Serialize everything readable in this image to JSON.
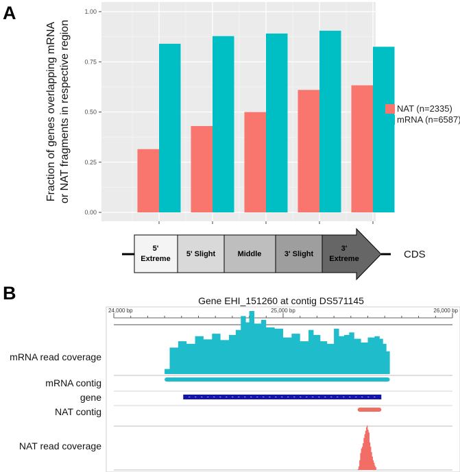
{
  "panel_a": {
    "panel_label": "A",
    "ylabel_line1": "Fraction of genes overlapping  mRNA",
    "ylabel_line2": "or NAT fragments in respective region",
    "yticks": [
      "0.00",
      "0.25",
      "0.50",
      "0.75",
      "1.00"
    ],
    "legend": {
      "nat_label": "NAT (n=2335)",
      "mrna_label": "mRNA (n=6587)"
    },
    "region_boxes": [
      {
        "line1": "5'",
        "line2": "Extreme"
      },
      {
        "line1": "5' Slight",
        "line2": ""
      },
      {
        "line1": "Middle",
        "line2": ""
      },
      {
        "line1": "3' Slight",
        "line2": ""
      },
      {
        "line1": "3'",
        "line2": "Extreme"
      }
    ],
    "cds_label": "CDS"
  },
  "chart_data": [
    {
      "type": "bar",
      "title": "",
      "xlabel": "",
      "ylabel": "Fraction of genes overlapping  mRNA or NAT fragments in respective region",
      "categories": [
        "5' Extreme",
        "5' Slight",
        "Middle",
        "3' Slight",
        "3' Extreme"
      ],
      "series": [
        {
          "name": "NAT (n=2335)",
          "color": "#f8766d",
          "values": [
            0.315,
            0.43,
            0.5,
            0.61,
            0.633
          ]
        },
        {
          "name": "mRNA (n=6587)",
          "color": "#00bfc4",
          "values": [
            0.84,
            0.878,
            0.891,
            0.905,
            0.825
          ]
        }
      ],
      "ylim": [
        0,
        1.0
      ],
      "grid": true,
      "legend_position": "right"
    },
    {
      "type": "area",
      "title": "Gene EHI_151260 at contig DS571145",
      "axis_ticks": [
        "24,000 bp",
        "25,000 bp",
        "26,000 bp"
      ],
      "xlim": [
        24000,
        26000
      ],
      "tracks": [
        {
          "name": "mRNA read coverage",
          "color": "#1fbccc",
          "x": [
            24300,
            24330,
            24380,
            24430,
            24480,
            24530,
            24580,
            24630,
            24680,
            24720,
            24750,
            24780,
            24800,
            24830,
            24870,
            24900,
            24950,
            25000,
            25050,
            25100,
            25150,
            25180,
            25220,
            25260,
            25300,
            25330,
            25360,
            25390,
            25420,
            25460,
            25500,
            25540,
            25570,
            25590,
            25610,
            25630
          ],
          "values": [
            0.08,
            0.42,
            0.52,
            0.48,
            0.6,
            0.55,
            0.64,
            0.54,
            0.62,
            0.7,
            0.92,
            0.82,
            1.0,
            0.8,
            0.86,
            0.74,
            0.72,
            0.58,
            0.64,
            0.52,
            0.7,
            0.62,
            0.52,
            0.48,
            0.72,
            0.6,
            0.62,
            0.66,
            0.56,
            0.5,
            0.58,
            0.6,
            0.56,
            0.48,
            0.36,
            0.04
          ]
        },
        {
          "name": "mRNA contig",
          "color": "#1fbccc",
          "start": 24300,
          "end": 25630
        },
        {
          "name": "gene",
          "color": "#1414a8",
          "start": 24410,
          "end": 25580
        },
        {
          "name": "NAT contig",
          "color": "#ef6e63",
          "start": 25440,
          "end": 25580
        },
        {
          "name": "NAT read coverage",
          "color": "#f26d66",
          "x": [
            25440,
            25445,
            25450,
            25455,
            25460,
            25465,
            25470,
            25475,
            25480,
            25485,
            25490,
            25495,
            25500,
            25505,
            25510,
            25515,
            25520,
            25525,
            25530,
            25535,
            25540,
            25545,
            25550
          ],
          "values": [
            0.02,
            0.08,
            0.22,
            0.38,
            0.48,
            0.52,
            0.6,
            0.72,
            0.8,
            0.88,
            0.96,
            1.0,
            0.9,
            0.84,
            0.62,
            0.52,
            0.4,
            0.3,
            0.22,
            0.16,
            0.1,
            0.06,
            0.02
          ]
        }
      ]
    }
  ],
  "panel_b": {
    "panel_label": "B",
    "title": "Gene EHI_151260 at contig DS571145"
  }
}
